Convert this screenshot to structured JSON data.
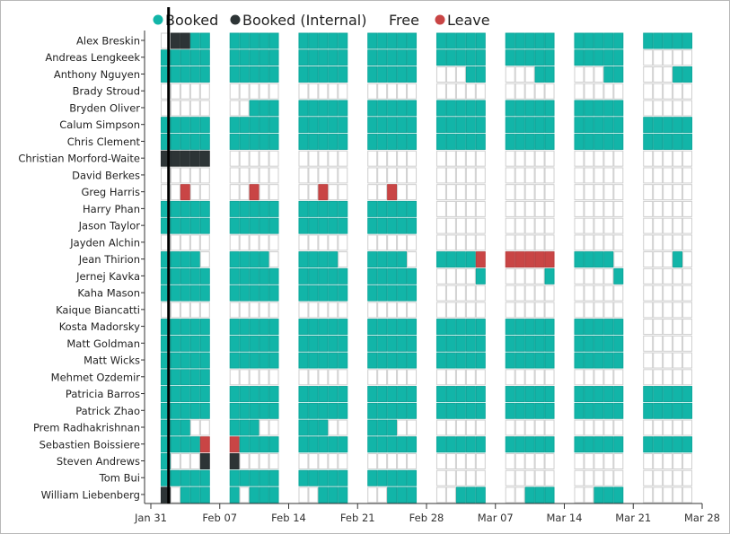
{
  "chart_data": {
    "type": "heatmap",
    "legend": [
      {
        "key": "B",
        "label": "Booked",
        "color": "#12b5a8"
      },
      {
        "key": "I",
        "label": "Booked (Internal)",
        "color": "#2d3436"
      },
      {
        "key": "F",
        "label": "Free",
        "color": "#ffffff"
      },
      {
        "key": "L",
        "label": "Leave",
        "color": "#c94545"
      }
    ],
    "legend_placement": "top",
    "x_ticks": [
      "Jan 31",
      "Feb 07",
      "Feb 14",
      "Feb 21",
      "Feb 28",
      "Mar 07",
      "Mar 14",
      "Mar 21",
      "Mar 28"
    ],
    "today_marker": "Feb 01",
    "rows": [
      {
        "name": "Alex Breskin",
        "weeks": [
          "FIIBB",
          "BBBBB",
          "BBBBB",
          "BBBBB",
          "BBBBB",
          "BBBBB",
          "BBBBB",
          "BBBBB"
        ]
      },
      {
        "name": "Andreas Lengkeek",
        "weeks": [
          "BBBBB",
          "BBBBB",
          "BBBBB",
          "BBBBB",
          "BBBBB",
          "BBBBB",
          "BBBBB",
          "FFFFF"
        ]
      },
      {
        "name": "Anthony Nguyen",
        "weeks": [
          "BBBBB",
          "BBBBB",
          "BBBBB",
          "BBBBB",
          "FFFBB",
          "FFFBB",
          "FFFBB",
          "FFFBB"
        ]
      },
      {
        "name": "Brady Stroud",
        "weeks": [
          "FFFFF",
          "FFFFF",
          "FFFFF",
          "FFFFF",
          "FFFFF",
          "FFFFF",
          "FFFFF",
          "FFFFF"
        ]
      },
      {
        "name": "Bryden Oliver",
        "weeks": [
          "FFFFF",
          "FFBBB",
          "BBBBB",
          "BBBBB",
          "BBBBB",
          "BBBBB",
          "BBBBB",
          "FFFFF"
        ]
      },
      {
        "name": "Calum Simpson",
        "weeks": [
          "BBBBB",
          "BBBBB",
          "BBBBB",
          "BBBBB",
          "BBBBB",
          "BBBBB",
          "BBBBB",
          "BBBBB"
        ]
      },
      {
        "name": "Chris Clement",
        "weeks": [
          "BBBBB",
          "BBBBB",
          "BBBBB",
          "BBBBB",
          "BBBBB",
          "BBBBB",
          "BBBBB",
          "BBBBB"
        ]
      },
      {
        "name": "Christian Morford-Waite",
        "weeks": [
          "IIIII",
          "FFFFF",
          "FFFFF",
          "FFFFF",
          "FFFFF",
          "FFFFF",
          "FFFFF",
          "FFFFF"
        ]
      },
      {
        "name": "David Berkes",
        "weeks": [
          "FFFFF",
          "FFFFF",
          "FFFFF",
          "FFFFF",
          "FFFFF",
          "FFFFF",
          "FFFFF",
          "FFFFF"
        ]
      },
      {
        "name": "Greg Harris",
        "weeks": [
          "FFLFF",
          "FFLFF",
          "FFLFF",
          "FFLFF",
          "FFFFF",
          "FFFFF",
          "FFFFF",
          "FFFFF"
        ]
      },
      {
        "name": "Harry Phan",
        "weeks": [
          "BBBBB",
          "BBBBB",
          "BBBBB",
          "BBBBB",
          "FFFFF",
          "FFFFF",
          "FFFFF",
          "FFFFF"
        ]
      },
      {
        "name": "Jason Taylor",
        "weeks": [
          "BBBBB",
          "BBBBB",
          "BBBBB",
          "BBBBB",
          "FFFFF",
          "FFFFF",
          "FFFFF",
          "FFFFF"
        ]
      },
      {
        "name": "Jayden Alchin",
        "weeks": [
          "FFFFF",
          "FFFFF",
          "FFFFF",
          "FFFFF",
          "FFFFF",
          "FFFFF",
          "FFFFF",
          "FFFFF"
        ]
      },
      {
        "name": "Jean Thirion",
        "weeks": [
          "BBBBF",
          "BBBBF",
          "BBBBF",
          "BBBBF",
          "BBBBL",
          "LLLLL",
          "BBBBF",
          "FFFBF"
        ]
      },
      {
        "name": "Jernej Kavka",
        "weeks": [
          "BBBBB",
          "BBBBB",
          "BBBBB",
          "BBBBB",
          "FFFFB",
          "FFFFB",
          "FFFFB",
          "FFFFF"
        ]
      },
      {
        "name": "Kaha Mason",
        "weeks": [
          "BBBBB",
          "BBBBB",
          "BBBBB",
          "BBBBB",
          "FFFFF",
          "FFFFF",
          "FFFFF",
          "FFFFF"
        ]
      },
      {
        "name": "Kaique Biancatti",
        "weeks": [
          "FFFFF",
          "FFFFF",
          "FFFFF",
          "FFFFF",
          "FFFFF",
          "FFFFF",
          "FFFFF",
          "FFFFF"
        ]
      },
      {
        "name": "Kosta Madorsky",
        "weeks": [
          "BBBBB",
          "BBBBB",
          "BBBBB",
          "BBBBB",
          "BBBBB",
          "BBBBB",
          "BBBBB",
          "FFFFF"
        ]
      },
      {
        "name": "Matt Goldman",
        "weeks": [
          "BBBBB",
          "BBBBB",
          "BBBBB",
          "BBBBB",
          "BBBBB",
          "BBBBB",
          "BBBBB",
          "FFFFF"
        ]
      },
      {
        "name": "Matt Wicks",
        "weeks": [
          "BBBBB",
          "BBBBB",
          "BBBBB",
          "BBBBB",
          "BBBBB",
          "BBBBB",
          "BBBBB",
          "FFFFF"
        ]
      },
      {
        "name": "Mehmet Ozdemir",
        "weeks": [
          "BBBBB",
          "FFFFF",
          "FFFFF",
          "FFFFF",
          "FFFFF",
          "FFFFF",
          "FFFFF",
          "FFFFF"
        ]
      },
      {
        "name": "Patricia Barros",
        "weeks": [
          "BBBBB",
          "BBBBB",
          "BBBBB",
          "BBBBB",
          "BBBBB",
          "BBBBB",
          "BBBBB",
          "BBBBB"
        ]
      },
      {
        "name": "Patrick Zhao",
        "weeks": [
          "BBBBB",
          "BBBBB",
          "BBBBB",
          "BBBBB",
          "BBBBB",
          "BBBBB",
          "BBBBB",
          "BBBBB"
        ]
      },
      {
        "name": "Prem Radhakrishnan",
        "weeks": [
          "BBBFF",
          "BBBFF",
          "BBBFF",
          "BBBFF",
          "FFFFF",
          "FFFFF",
          "FFFFF",
          "FFFFF"
        ]
      },
      {
        "name": "Sebastien Boissiere",
        "weeks": [
          "BBBBL",
          "LBBBB",
          "BBBBB",
          "BBBBB",
          "BBBBB",
          "BBBBB",
          "BBBBB",
          "BBBBB"
        ]
      },
      {
        "name": "Steven Andrews",
        "weeks": [
          "BFFFI",
          "IFFFF",
          "FFFFF",
          "FFFFF",
          "FFFFF",
          "FFFFF",
          "FFFFF",
          "FFFFF"
        ]
      },
      {
        "name": "Tom Bui",
        "weeks": [
          "BBBBB",
          "BBBBB",
          "BBBBB",
          "BBBBB",
          "FFFFF",
          "FFFFF",
          "FFFFF",
          "FFFFF"
        ]
      },
      {
        "name": "William Liebenberg",
        "weeks": [
          "IFBBB",
          "BFBBB",
          "FFBBB",
          "FFBBB",
          "FFBBB",
          "FFBBB",
          "FFBBB",
          "FFFFF"
        ]
      }
    ]
  }
}
